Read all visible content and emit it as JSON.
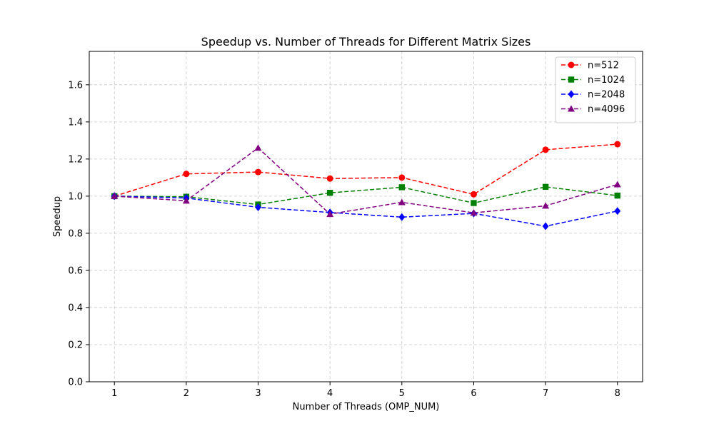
{
  "chart_data": {
    "type": "line",
    "title": "Speedup vs. Number of Threads for Different Matrix Sizes",
    "xlabel": "Number of Threads (OMP_NUM)",
    "ylabel": "Speedup",
    "x": [
      1,
      2,
      3,
      4,
      5,
      6,
      7,
      8
    ],
    "xlim": [
      0.65,
      8.35
    ],
    "ylim": [
      0.0,
      1.78
    ],
    "xticks": [
      1,
      2,
      3,
      4,
      5,
      6,
      7,
      8
    ],
    "yticks": [
      0.0,
      0.2,
      0.4,
      0.6,
      0.8,
      1.0,
      1.2,
      1.4,
      1.6
    ],
    "grid": true,
    "legend_position": "top-right",
    "series": [
      {
        "name": "n=512",
        "color": "#ff0000",
        "marker": "circle",
        "linestyle": "dashed",
        "values": [
          1.0,
          1.12,
          1.13,
          1.095,
          1.1,
          1.01,
          1.25,
          1.28
        ]
      },
      {
        "name": "n=1024",
        "color": "#008000",
        "marker": "square",
        "linestyle": "dashed",
        "values": [
          1.0,
          0.997,
          0.955,
          1.018,
          1.048,
          0.963,
          1.05,
          1.003
        ]
      },
      {
        "name": "n=2048",
        "color": "#0000ff",
        "marker": "diamond",
        "linestyle": "dashed",
        "values": [
          1.0,
          0.99,
          0.94,
          0.912,
          0.887,
          0.907,
          0.838,
          0.92
        ]
      },
      {
        "name": "n=4096",
        "color": "#800080",
        "marker": "triangle",
        "linestyle": "dashed",
        "values": [
          1.0,
          0.975,
          1.26,
          0.903,
          0.967,
          0.91,
          0.948,
          1.063
        ]
      }
    ]
  }
}
